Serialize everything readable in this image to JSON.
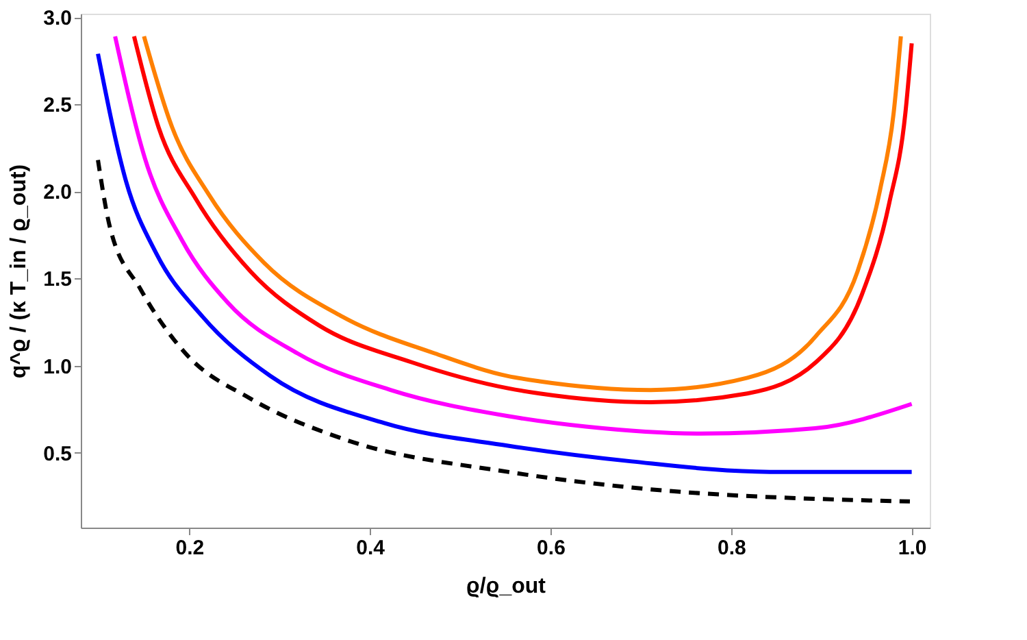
{
  "chart_data": {
    "type": "line",
    "xlabel": "ϱ/ϱ_out",
    "ylabel": "q^ϱ / (κ T_in / ϱ_out)",
    "xlim": [
      0.08,
      1.02
    ],
    "ylim": [
      0.07,
      3.02
    ],
    "xticks": [
      0.2,
      0.4,
      0.6,
      0.8,
      {
        "value": 1,
        "label": "1.0"
      }
    ],
    "yticks": [
      0.5,
      {
        "value": 1,
        "label": "1.0"
      },
      1.5,
      {
        "value": 2,
        "label": "2.0"
      },
      2.5,
      {
        "value": 3,
        "label": "3.0"
      }
    ],
    "grid": false,
    "marker": "none",
    "series": [
      {
        "color": "#000000",
        "line_style": "dashed",
        "x": [
          0.099,
          0.112,
          0.146,
          0.196,
          0.268,
          0.37,
          0.553,
          0.69,
          0.998
        ],
        "values": [
          2.18,
          1.8,
          1.44,
          1.07,
          0.81,
          0.58,
          0.39,
          0.3,
          0.22
        ]
      },
      {
        "color": "#0000ff",
        "line_style": "solid",
        "x": [
          0.099,
          0.13,
          0.164,
          0.215,
          0.29,
          0.416,
          0.553,
          0.69,
          0.843,
          1.0
        ],
        "values": [
          2.79,
          2.06,
          1.64,
          1.28,
          0.94,
          0.67,
          0.54,
          0.45,
          0.39,
          0.39
        ]
      },
      {
        "color": "#ff00ff",
        "line_style": "solid",
        "x": [
          0.118,
          0.151,
          0.192,
          0.243,
          0.32,
          0.423,
          0.553,
          0.639,
          0.766,
          0.893,
          1.0
        ],
        "values": [
          2.89,
          2.19,
          1.72,
          1.36,
          1.07,
          0.86,
          0.71,
          0.65,
          0.61,
          0.64,
          0.78
        ]
      },
      {
        "color": "#ff0000",
        "line_style": "solid",
        "x": [
          0.139,
          0.166,
          0.207,
          0.268,
          0.344,
          0.446,
          0.553,
          0.588,
          0.711,
          0.818,
          0.894,
          0.945,
          0.975,
          0.993,
          1.0
        ],
        "values": [
          2.89,
          2.37,
          1.96,
          1.54,
          1.23,
          1.02,
          0.87,
          0.84,
          0.79,
          0.84,
          1.02,
          1.41,
          1.93,
          2.45,
          2.85
        ]
      },
      {
        "color": "#ff8000",
        "line_style": "solid",
        "x": [
          0.15,
          0.181,
          0.222,
          0.283,
          0.37,
          0.472,
          0.553,
          0.588,
          0.711,
          0.818,
          0.894,
          0.94,
          0.965,
          0.98,
          0.988
        ],
        "values": [
          2.89,
          2.37,
          1.98,
          1.59,
          1.28,
          1.07,
          0.94,
          0.91,
          0.86,
          0.93,
          1.17,
          1.54,
          2.01,
          2.45,
          2.89
        ]
      }
    ]
  }
}
